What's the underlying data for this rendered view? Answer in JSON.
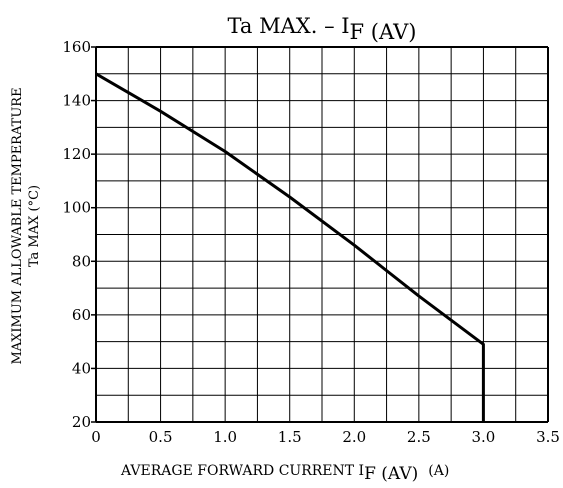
{
  "chart_data": {
    "type": "line",
    "title": {
      "main": "Ta MAX.  –  I",
      "sub": "F (AV)"
    },
    "xlabel": {
      "main": "AVERAGE FORWARD CURRENT  I",
      "sub": "F (AV)",
      "unit": "(A)"
    },
    "ylabel": {
      "line1": "MAXIMUM ALLOWABLE TEMPERATURE",
      "line2": "Ta MAX   (°C)"
    },
    "xlim": [
      0,
      3.5
    ],
    "ylim": [
      20,
      160
    ],
    "x_ticks": [
      0,
      0.5,
      1.0,
      1.5,
      2.0,
      2.5,
      3.0,
      3.5
    ],
    "x_tick_labels": [
      "0",
      "0.5",
      "1.0",
      "1.5",
      "2.0",
      "2.5",
      "3.0",
      "3.5"
    ],
    "y_ticks": [
      20,
      40,
      60,
      80,
      100,
      120,
      140,
      160
    ],
    "y_tick_labels": [
      "20",
      "40",
      "60",
      "80",
      "100",
      "120",
      "140",
      "160"
    ],
    "grid": {
      "x_step": 0.25,
      "y_step": 10,
      "visible": true
    },
    "series": [
      {
        "x": [
          0,
          0.5,
          1.0,
          1.5,
          2.0,
          2.5,
          3.0,
          3.0
        ],
        "y": [
          150,
          136,
          121,
          104,
          86,
          67,
          49,
          20
        ]
      }
    ],
    "colors": {
      "line": "#000000",
      "grid": "#000000",
      "background": "#ffffff"
    }
  }
}
